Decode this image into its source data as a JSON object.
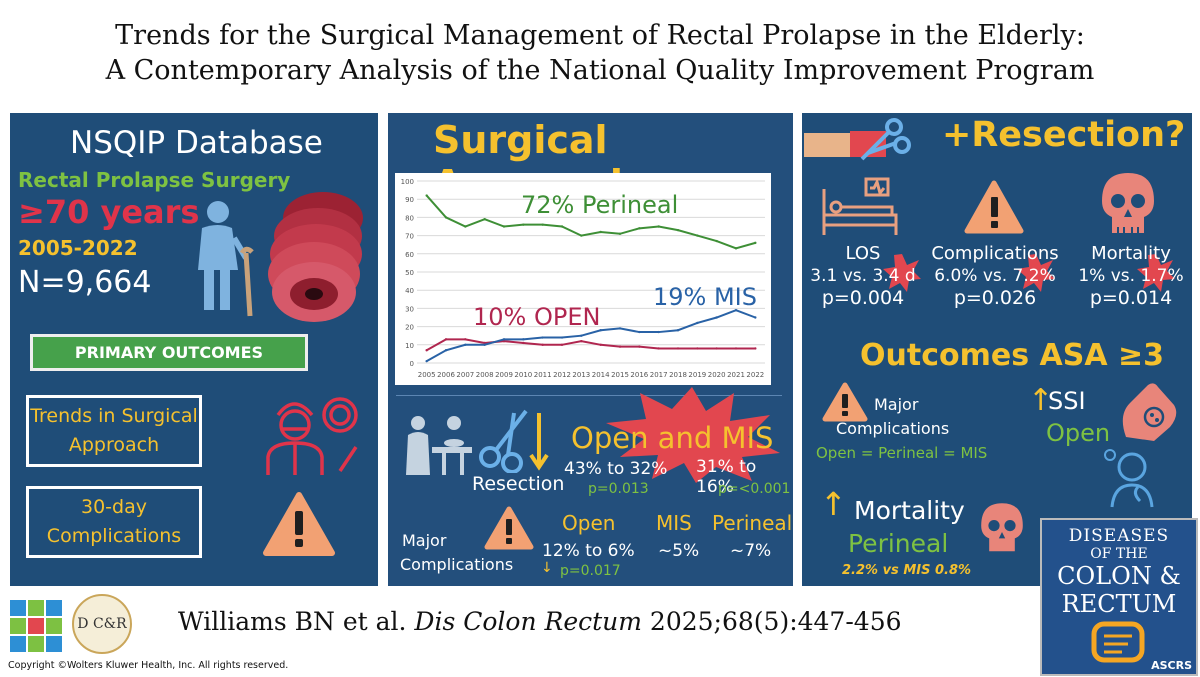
{
  "title": {
    "line1": "Trends for the Surgical Management of Rectal Prolapse in the Elderly:",
    "line2": "A Contemporary Analysis of the National Quality Improvement Program"
  },
  "left": {
    "heading": "NSQIP Database",
    "population": "Rectal Prolapse Surgery",
    "age": "≥70 years",
    "years": "2005-2022",
    "n": "N=9,664",
    "primary_outcomes": "PRIMARY OUTCOMES",
    "outcome1_l1": "Trends in Surgical",
    "outcome1_l2": "Approach",
    "outcome2_l1": "30-day",
    "outcome2_l2": "Complications"
  },
  "middle": {
    "heading": "Surgical Approach",
    "label_perineal": "72% Perineal",
    "label_open": "10% OPEN",
    "label_mis": "19% MIS",
    "open_and_mis": "Open and MIS",
    "resection": "Resection",
    "open_change": "43% to 32%",
    "open_p": "p=0.013",
    "mis_change": "31% to 16%",
    "mis_p": "p=<0.001",
    "major_l1": "Major",
    "major_l2": "Complications",
    "col_open": "Open",
    "col_mis": "MIS",
    "col_perineal": "Perineal",
    "open_val": "12% to 6%",
    "mis_val": "~5%",
    "perineal_val": "~7%",
    "open_val_p": "p=0.017"
  },
  "right": {
    "heading": "+Resection?",
    "los": "LOS",
    "los_val": "3.1 vs. 3.4 d",
    "los_p": "p=0.004",
    "comp": "Complications",
    "comp_val": "6.0% vs. 7.2%",
    "comp_p": "p=0.026",
    "mort": "Mortality",
    "mort_val": "1% vs. 1.7%",
    "mort_p": "p=0.014",
    "asa_heading": "Outcomes ASA ≥3",
    "major_l1": "Major",
    "major_l2": "Complications",
    "equal": "Open = Perineal = MIS",
    "ssi": "SSI",
    "ssi_open": "Open",
    "mortality2": "Mortality",
    "perineal2": "Perineal",
    "mort2_val": "2.2% vs MIS 0.8%"
  },
  "journal": {
    "l1": "DISEASES",
    "l2": "OF THE",
    "l3": "COLON &",
    "l4": "RECTUM",
    "badge": "ASCRS"
  },
  "logo_dcr": "D C&R",
  "citation_pre": "Williams BN et al. ",
  "citation_journal": "Dis Colon Rectum",
  "citation_post": " 2025;68(5):447-456",
  "copyright": "Copyright ©Wolters Kluwer Health, Inc. All rights reserved.",
  "colors": {
    "panel": "#1f4d78",
    "yellow": "#f5c12e",
    "green": "#7ec242",
    "red": "#e0344a",
    "salmon": "#f08f72",
    "starburst": "#e2474f"
  },
  "chart_data": {
    "type": "line",
    "x": [
      "2005",
      "2006",
      "2007",
      "2008",
      "2009",
      "2010",
      "2011",
      "2012",
      "2013",
      "2014",
      "2015",
      "2016",
      "2017",
      "2018",
      "2019",
      "2020",
      "2021",
      "2022"
    ],
    "ylim": [
      0,
      100
    ],
    "yticks": [
      0,
      10,
      20,
      30,
      40,
      50,
      60,
      70,
      80,
      90,
      100
    ],
    "series": [
      {
        "name": "72% Perineal",
        "color": "#3e8f36",
        "values": [
          92,
          80,
          75,
          79,
          75,
          76,
          76,
          75,
          70,
          72,
          71,
          74,
          75,
          73,
          70,
          67,
          63,
          66
        ]
      },
      {
        "name": "10% OPEN",
        "color": "#b0264f",
        "values": [
          7,
          13,
          13,
          11,
          12,
          11,
          10,
          10,
          12,
          10,
          9,
          9,
          8,
          8,
          8,
          8,
          8,
          8
        ]
      },
      {
        "name": "19% MIS",
        "color": "#2962a6",
        "values": [
          1,
          7,
          10,
          10,
          13,
          13,
          14,
          14,
          15,
          18,
          19,
          17,
          17,
          18,
          22,
          25,
          29,
          25
        ]
      }
    ]
  }
}
